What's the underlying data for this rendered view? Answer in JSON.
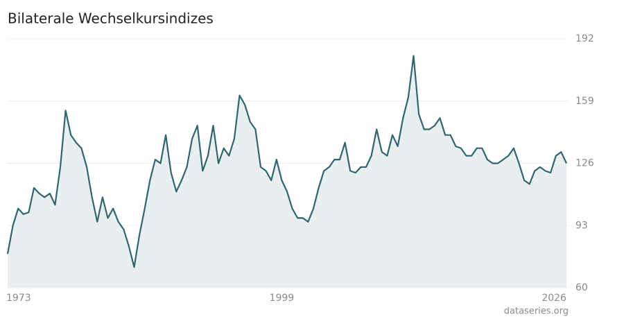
{
  "chart_data": {
    "type": "area",
    "title": "Bilaterale Wechselkursindizes",
    "source": "dataseries.org",
    "x": [
      1973,
      1973.5,
      1974,
      1974.5,
      1975,
      1975.5,
      1976,
      1976.5,
      1977,
      1977.5,
      1978,
      1978.5,
      1979,
      1979.5,
      1980,
      1980.5,
      1981,
      1981.5,
      1982,
      1982.5,
      1983,
      1983.5,
      1984,
      1984.5,
      1985,
      1985.5,
      1986,
      1986.5,
      1987,
      1987.5,
      1988,
      1988.5,
      1989,
      1989.5,
      1990,
      1990.5,
      1991,
      1991.5,
      1992,
      1992.5,
      1993,
      1993.5,
      1994,
      1994.5,
      1995,
      1995.5,
      1996,
      1996.5,
      1997,
      1997.5,
      1998,
      1998.5,
      1999,
      1999.5,
      2000,
      2000.5,
      2001,
      2001.5,
      2002,
      2002.5,
      2003,
      2003.5,
      2004,
      2004.5,
      2005,
      2005.5,
      2006,
      2006.5,
      2007,
      2007.5,
      2008,
      2008.5,
      2009,
      2009.5,
      2010,
      2010.5,
      2011,
      2011.5,
      2012,
      2012.5,
      2013,
      2013.5,
      2014,
      2014.5,
      2015,
      2015.5,
      2016,
      2016.5,
      2017,
      2017.5,
      2018,
      2018.5,
      2019,
      2019.5,
      2020,
      2020.5,
      2021,
      2021.5,
      2022,
      2022.5,
      2023,
      2023.5,
      2024,
      2024.5,
      2025,
      2025.5,
      2026
    ],
    "values": [
      78,
      93,
      102,
      99,
      100,
      113,
      110,
      108,
      110,
      104,
      124,
      154,
      141,
      137,
      134,
      124,
      108,
      95,
      108,
      97,
      102,
      95,
      91,
      82,
      71,
      88,
      102,
      117,
      128,
      126,
      141,
      121,
      111,
      117,
      124,
      139,
      146,
      122,
      130,
      146,
      126,
      134,
      130,
      139,
      162,
      157,
      148,
      144,
      124,
      122,
      117,
      128,
      117,
      111,
      102,
      97,
      97,
      95,
      102,
      113,
      122,
      124,
      128,
      128,
      137,
      122,
      121,
      124,
      124,
      130,
      144,
      132,
      130,
      141,
      135,
      150,
      161,
      183,
      152,
      144,
      144,
      146,
      150,
      141,
      141,
      135,
      134,
      130,
      130,
      134,
      134,
      128,
      126,
      126,
      128,
      130,
      134,
      126,
      117,
      115,
      122,
      124,
      122,
      121,
      130,
      132,
      126
    ],
    "color": "#2c6670",
    "fill": "#e9eff1",
    "xlim": [
      1973,
      2026.2
    ],
    "xticks": [
      1973,
      1999,
      2026
    ],
    "ylim": [
      60,
      192
    ],
    "yticks": [
      60,
      93,
      126,
      159,
      192
    ],
    "grid": true
  }
}
